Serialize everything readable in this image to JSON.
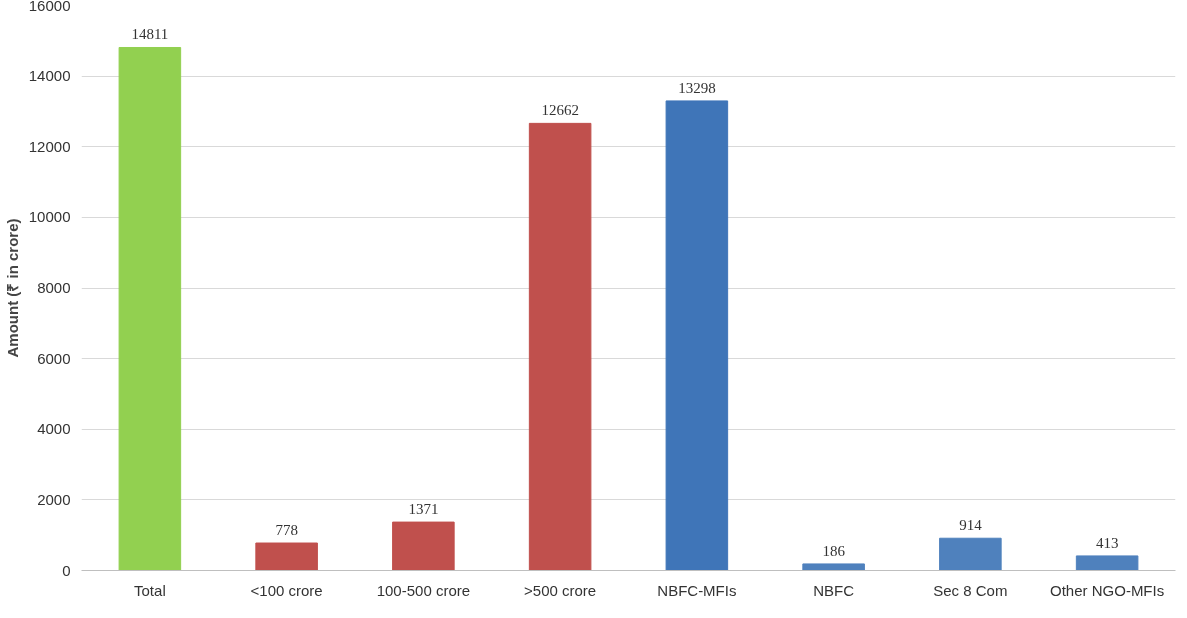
{
  "chart_data": {
    "type": "bar",
    "ylabel": "Amount (₹ in crore)",
    "categories": [
      "Total",
      "<100 crore",
      "100-500 crore",
      ">500 crore",
      "NBFC-MFIs",
      "NBFC",
      "Sec 8 Com",
      "Other NGO-MFIs"
    ],
    "values": [
      14811,
      778,
      1371,
      12662,
      13298,
      186,
      914,
      413
    ],
    "colors": [
      "#92d050",
      "#c0504d",
      "#c0504d",
      "#c0504d",
      "#3f75b8",
      "#4f81bd",
      "#4f81bd",
      "#4f81bd"
    ],
    "ylim": [
      0,
      16000
    ],
    "yticks": [
      0,
      2000,
      4000,
      6000,
      8000,
      10000,
      12000,
      14000,
      16000
    ],
    "grid": "y",
    "data_labels": true
  }
}
